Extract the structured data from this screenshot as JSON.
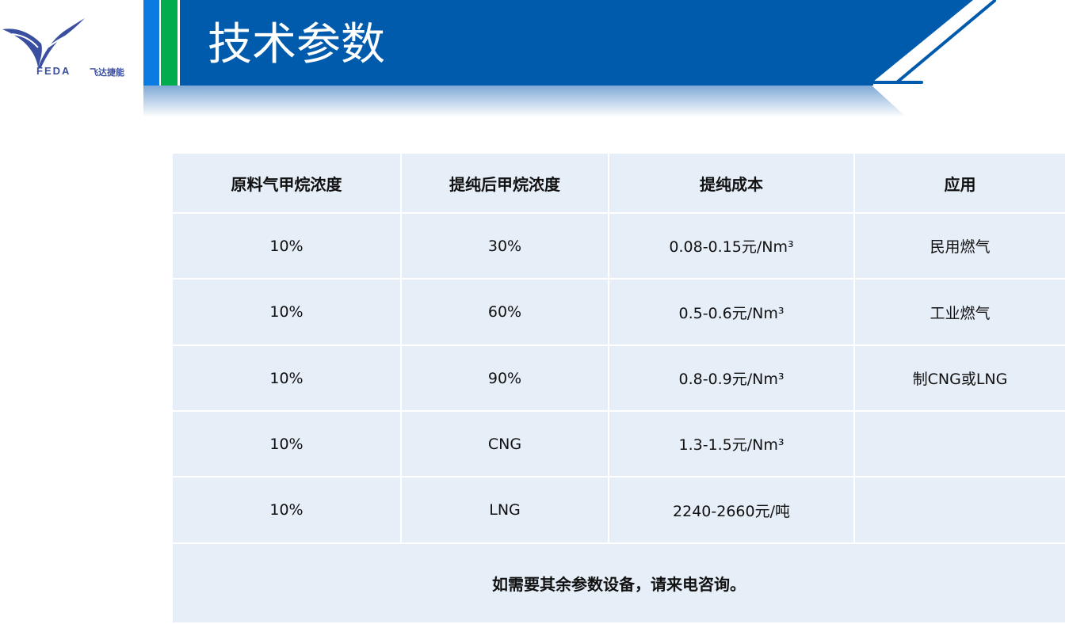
{
  "logo": {
    "brand": "FEDA",
    "name_cn": "飞达捷能"
  },
  "colors": {
    "header": "#005BAC",
    "accent_blue": "#0A7BE0",
    "accent_green": "#00AC4E",
    "cell": "#E6EEF8"
  },
  "title": "技术参数",
  "table": {
    "headers": [
      "原料气甲烷浓度",
      "提纯后甲烷浓度",
      "提纯成本",
      "应用"
    ],
    "rows": [
      [
        "10%",
        "30%",
        "0.08-0.15元/Nm³",
        "民用燃气"
      ],
      [
        "10%",
        "60%",
        "0.5-0.6元/Nm³",
        "工业燃气"
      ],
      [
        "10%",
        "90%",
        "0.8-0.9元/Nm³",
        "制CNG或LNG"
      ],
      [
        "10%",
        "CNG",
        "1.3-1.5元/Nm³",
        ""
      ],
      [
        "10%",
        "LNG",
        "2240-2660元/吨",
        ""
      ]
    ],
    "footer": "如需要其余参数设备，请来电咨询。"
  }
}
